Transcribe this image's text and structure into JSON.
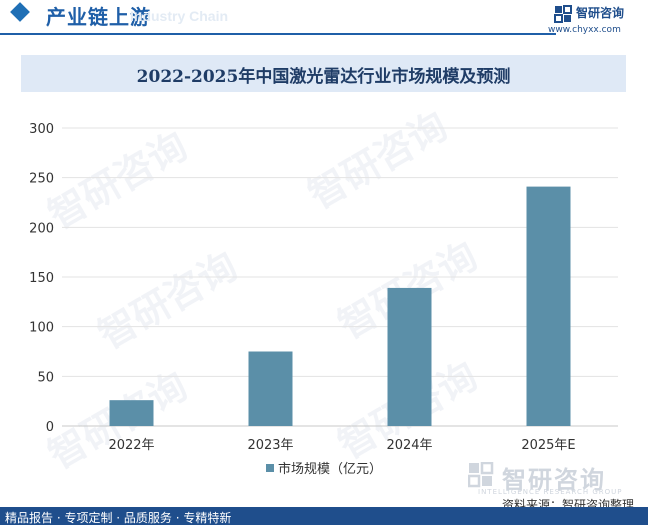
{
  "header": {
    "title": "产业链上游",
    "subtitle": "Industry Chain"
  },
  "brand": {
    "name": "智研咨询",
    "url": "www.chyxx.com"
  },
  "chart_data": {
    "type": "bar",
    "title": "2022-2025年中国激光雷达行业市场规模及预测",
    "categories": [
      "2022年",
      "2023年",
      "2024年",
      "2025年E"
    ],
    "series": [
      {
        "name": "市场规模（亿元）",
        "values": [
          26,
          75,
          139,
          241
        ]
      }
    ],
    "ylim": [
      0,
      300
    ],
    "yticks": [
      0,
      50,
      100,
      150,
      200,
      250,
      300
    ],
    "xlabel": "",
    "ylabel": "",
    "grid": true,
    "legend": "bottom",
    "bar_color": "#5b8fa8"
  },
  "watermark": {
    "text": "智研咨询"
  },
  "bottom_logo": {
    "text": "智研咨询",
    "sub": "INTELLIGENCE RESEARCH GROUP"
  },
  "source": "资料来源：智研咨询整理",
  "footer": "精品报告 · 专项定制 · 品质服务 · 专精特新"
}
